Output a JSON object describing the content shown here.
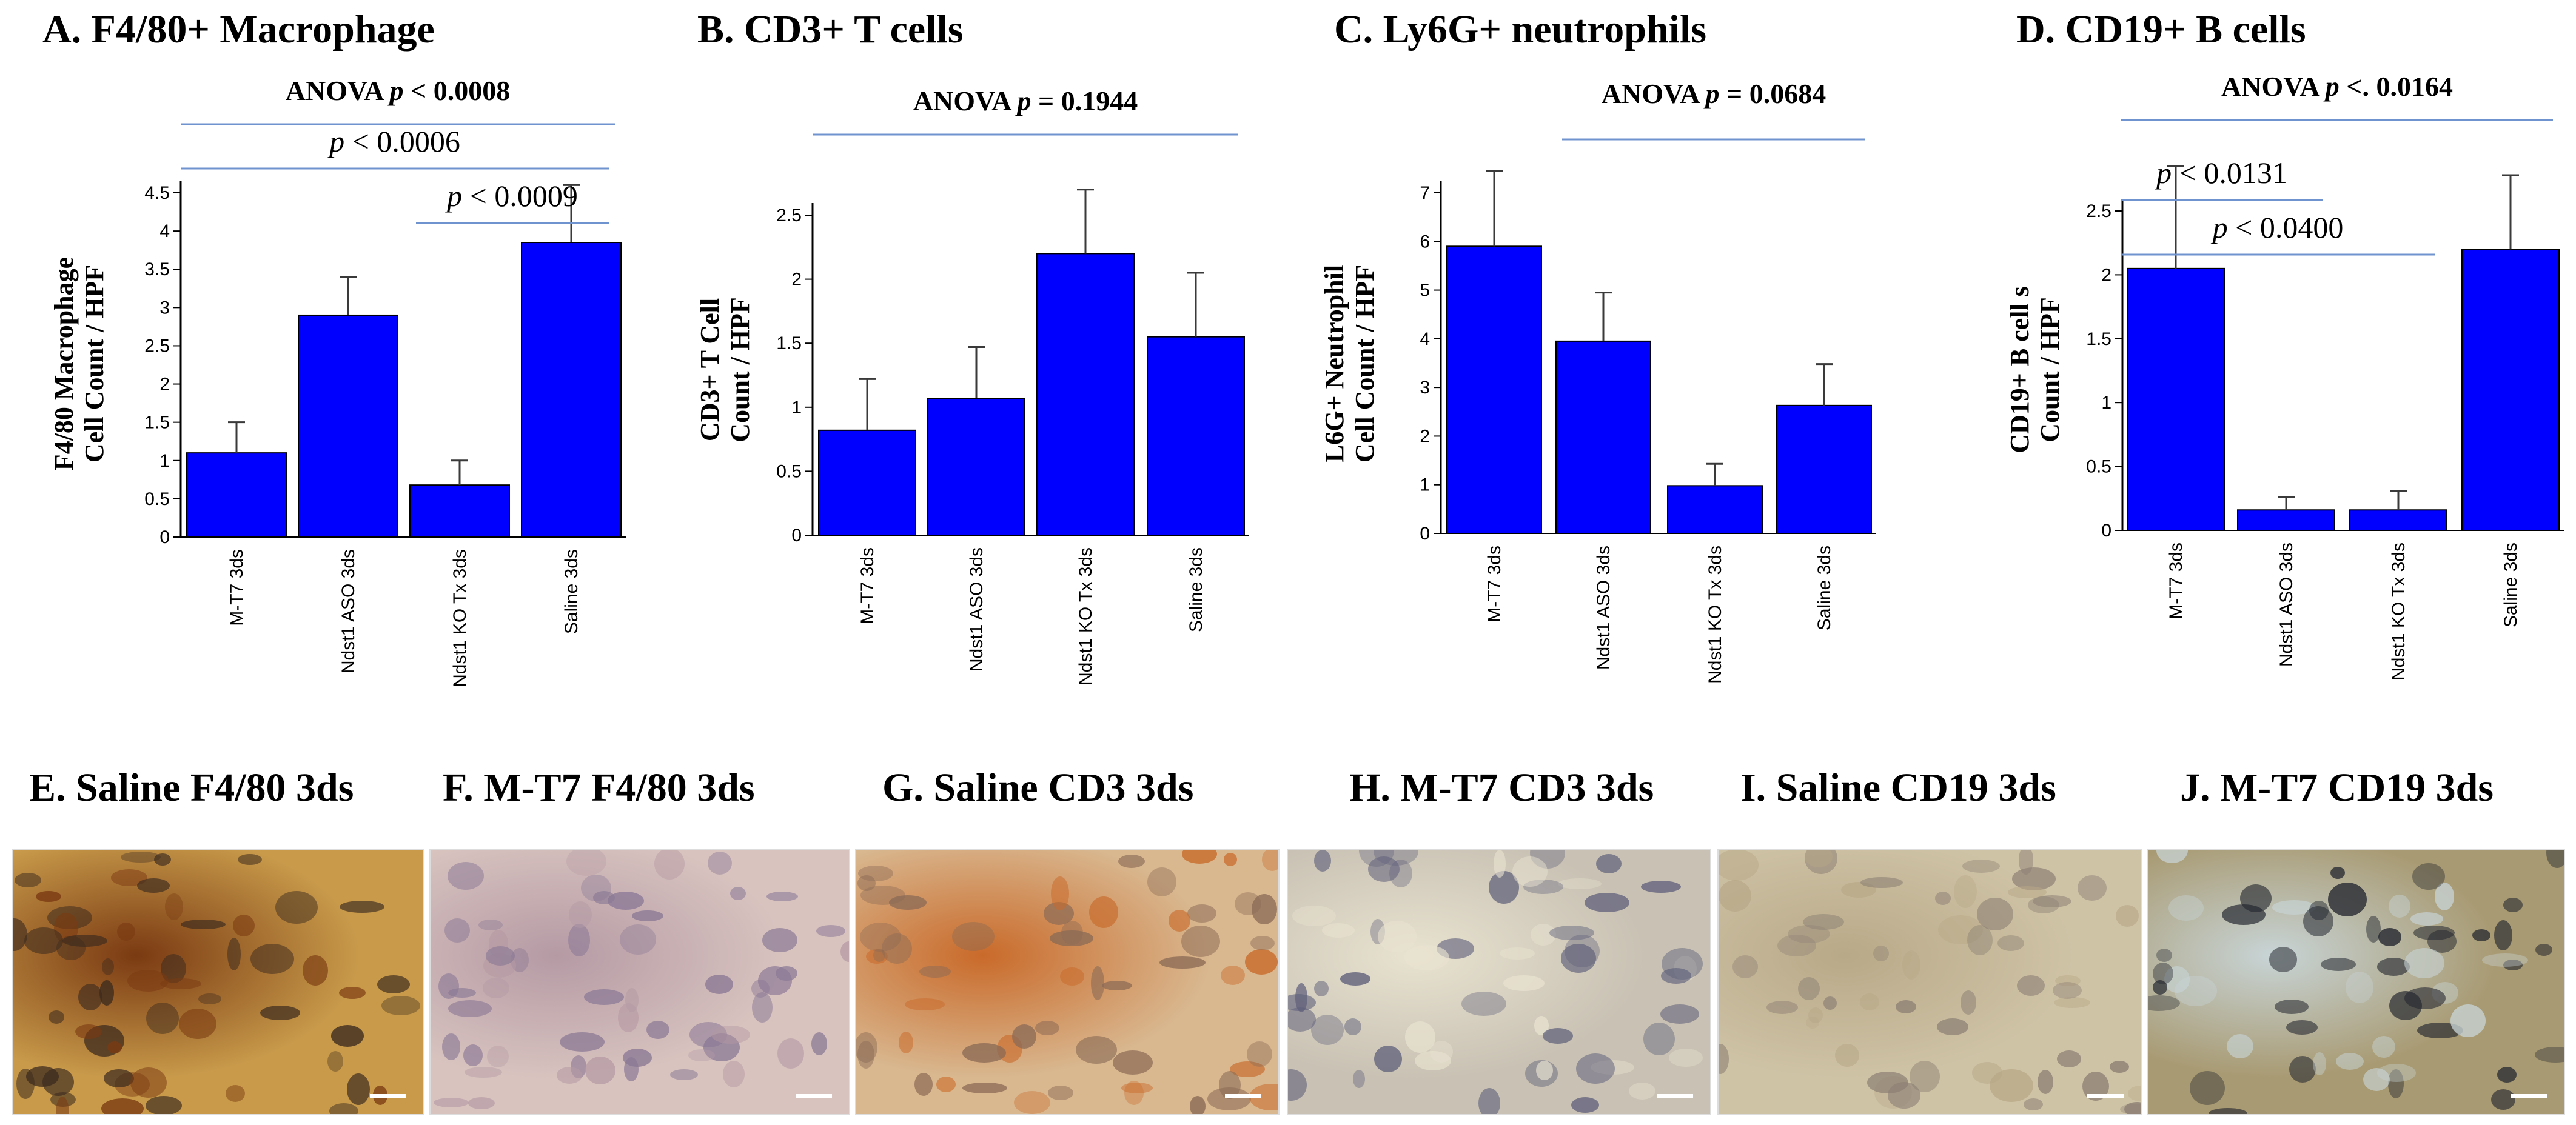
{
  "chart_data": [
    {
      "type": "bar",
      "title": "A. F4/80+ Macrophage",
      "ylabel_lines": [
        "F4/80 Macrophage",
        "Cell Count / HPF"
      ],
      "categories": [
        "M-T7 3ds",
        "Ndst1 ASO 3ds",
        "Ndst1 KO Tx 3ds",
        "Saline 3ds"
      ],
      "values": [
        1.1,
        2.9,
        0.68,
        3.85
      ],
      "errors": [
        0.4,
        0.5,
        0.32,
        0.75
      ],
      "ylim": [
        0,
        4.5
      ],
      "yticks": [
        "0",
        "0.5",
        "1",
        "1.5",
        "2",
        "2.5",
        "3",
        "3.5",
        "4",
        "4.5"
      ],
      "color": "#0000ff",
      "annotations": [
        {
          "prefix": "ANOVA ",
          "p": "p",
          "rest": " < 0.0008",
          "bold": true,
          "from": 0,
          "to": 3
        },
        {
          "prefix": "",
          "p": "p",
          "rest": " < 0.0006",
          "bold": false,
          "from": 0,
          "to": 3
        },
        {
          "prefix": "",
          "p": "p",
          "rest": " < 0.0009",
          "bold": false,
          "from": 2,
          "to": 3
        }
      ]
    },
    {
      "type": "bar",
      "title": "B. CD3+ T cells",
      "ylabel_lines": [
        "CD3+ T Cell",
        "Count / HPF"
      ],
      "categories": [
        "M-T7 3ds",
        "Ndst1 ASO 3ds",
        "Ndst1 KO Tx 3ds",
        "Saline 3ds"
      ],
      "values": [
        0.82,
        1.07,
        2.2,
        1.55
      ],
      "errors": [
        0.4,
        0.4,
        0.5,
        0.5
      ],
      "ylim": [
        0,
        2.5
      ],
      "yticks": [
        "0",
        "0.5",
        "1",
        "1.5",
        "2",
        "2.5"
      ],
      "color": "#0000ff",
      "annotations": [
        {
          "prefix": "ANOVA ",
          "p": "p",
          "rest": " = 0.1944",
          "bold": true,
          "from": 0,
          "to": 3
        }
      ]
    },
    {
      "type": "bar",
      "title": "C. Ly6G+ neutrophils",
      "ylabel_lines": [
        "L6G+ Neutrophil",
        "Cell Count / HPF"
      ],
      "categories": [
        "M-T7 3ds",
        "Ndst1 ASO 3ds",
        "Ndst1 KO Tx 3ds",
        "Saline 3ds"
      ],
      "values": [
        5.9,
        3.95,
        0.98,
        2.63
      ],
      "errors": [
        1.55,
        1.0,
        0.45,
        0.85
      ],
      "ylim": [
        0,
        7
      ],
      "yticks": [
        "0",
        "1",
        "2",
        "3",
        "4",
        "5",
        "6",
        "7"
      ],
      "color": "#0000ff",
      "annotations": [
        {
          "prefix": "ANOVA ",
          "p": "p",
          "rest": " = 0.0684",
          "bold": true,
          "from": 1,
          "to": 3
        }
      ]
    },
    {
      "type": "bar",
      "title": "D. CD19+ B cells",
      "ylabel_lines": [
        "CD19+ B cell s",
        "Count / HPF"
      ],
      "categories": [
        "M-T7 3ds",
        "Ndst1 ASO 3ds",
        "Ndst1 KO Tx 3ds",
        "Saline 3ds"
      ],
      "values": [
        2.05,
        0.16,
        0.16,
        2.2
      ],
      "errors": [
        0.8,
        0.1,
        0.15,
        0.58
      ],
      "ylim": [
        0,
        2.5
      ],
      "yticks": [
        "0",
        "0.5",
        "1",
        "1.5",
        "2",
        "2.5"
      ],
      "color": "#0000ff",
      "annotations": [
        {
          "prefix": "ANOVA ",
          "p": "p",
          "rest": " <. 0.0164",
          "bold": true,
          "from": 0,
          "to": 3
        },
        {
          "prefix": "",
          "p": "p",
          "rest": " < 0.0131",
          "bold": false,
          "from": 0,
          "to": 1
        },
        {
          "prefix": "",
          "p": "p",
          "rest": " < 0.0400",
          "bold": false,
          "from": 0,
          "to": 2
        }
      ]
    }
  ],
  "micrographs": [
    {
      "title": "E. Saline F4/80 3ds",
      "bg": "#c89a4a",
      "accent": "#7a3a12",
      "nuclei": "#3b2a1e"
    },
    {
      "title": "F. M-T7 F4/80 3ds",
      "bg": "#d8c3bf",
      "accent": "#b59aa4",
      "nuclei": "#8a7895"
    },
    {
      "title": "G. Saline CD3 3ds",
      "bg": "#d9b890",
      "accent": "#c96a2a",
      "nuclei": "#8a6a55"
    },
    {
      "title": "H. M-T7 CD3 3ds",
      "bg": "#c9c2b4",
      "accent": "#e8e2d0",
      "nuclei": "#5e5f7a"
    },
    {
      "title": "I. Saline CD19 3ds",
      "bg": "#cfc3a6",
      "accent": "#b8a988",
      "nuclei": "#8c7f74"
    },
    {
      "title": "J. M-T7 CD19 3ds",
      "bg": "#a89a72",
      "accent": "#c8d4d6",
      "nuclei": "#22252e"
    }
  ]
}
